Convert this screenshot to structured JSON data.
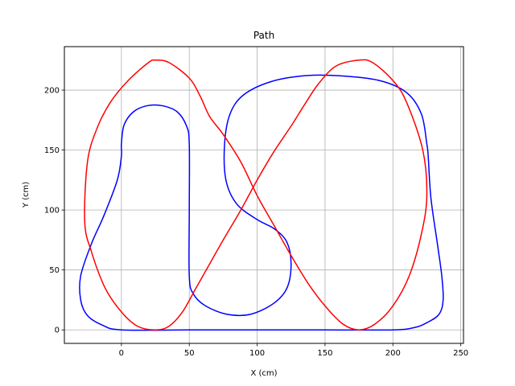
{
  "chart_data": {
    "type": "line",
    "title": "Path",
    "xlabel": "X (cm)",
    "ylabel": "Y (cm)",
    "xlim": [
      -42,
      252
    ],
    "ylim": [
      -11.25,
      236.25
    ],
    "xticks": [
      0,
      50,
      100,
      150,
      200,
      250
    ],
    "yticks": [
      0,
      50,
      100,
      150,
      200
    ],
    "grid": true,
    "series": [
      {
        "color": "#0000ff",
        "points": [
          [
            0,
            0
          ],
          [
            50,
            0
          ],
          [
            100,
            0
          ],
          [
            150,
            0
          ],
          [
            200,
            0
          ],
          [
            216,
            2
          ],
          [
            225,
            6
          ],
          [
            234,
            13
          ],
          [
            237,
            25
          ],
          [
            236,
            45
          ],
          [
            233,
            70
          ],
          [
            228,
            110
          ],
          [
            226,
            145
          ],
          [
            225,
            155
          ],
          [
            221,
            180
          ],
          [
            210,
            198
          ],
          [
            190,
            208
          ],
          [
            160,
            212
          ],
          [
            135,
            212
          ],
          [
            110,
            207
          ],
          [
            90,
            196
          ],
          [
            80,
            180
          ],
          [
            76,
            155
          ],
          [
            77,
            125
          ],
          [
            85,
            105
          ],
          [
            100,
            92
          ],
          [
            113,
            84
          ],
          [
            122,
            73
          ],
          [
            125,
            55
          ],
          [
            122,
            35
          ],
          [
            112,
            22
          ],
          [
            95,
            13
          ],
          [
            78,
            13
          ],
          [
            62,
            20
          ],
          [
            53,
            30
          ],
          [
            50,
            45
          ],
          [
            50,
            100
          ],
          [
            50,
            155
          ],
          [
            48,
            170
          ],
          [
            41,
            182
          ],
          [
            30,
            187
          ],
          [
            19,
            187
          ],
          [
            9,
            182
          ],
          [
            2,
            171
          ],
          [
            0,
            155
          ],
          [
            0,
            145
          ],
          [
            -3,
            125
          ],
          [
            -13,
            95
          ],
          [
            -22,
            72
          ],
          [
            -30,
            45
          ],
          [
            -30,
            25
          ],
          [
            -25,
            12
          ],
          [
            -14,
            4
          ],
          [
            0,
            0
          ]
        ]
      },
      {
        "color": "#ff0000",
        "points": [
          [
            25,
            0
          ],
          [
            12,
            3
          ],
          [
            0,
            15
          ],
          [
            -12,
            35
          ],
          [
            -22,
            65
          ],
          [
            -27,
            90
          ],
          [
            -25,
            140
          ],
          [
            -18,
            168
          ],
          [
            -8,
            190
          ],
          [
            5,
            208
          ],
          [
            20,
            223
          ],
          [
            25,
            225
          ],
          [
            35,
            223
          ],
          [
            50,
            210
          ],
          [
            58,
            195
          ],
          [
            65,
            178
          ],
          [
            75,
            163
          ],
          [
            88,
            140
          ],
          [
            100,
            112
          ],
          [
            112,
            88
          ],
          [
            125,
            62
          ],
          [
            138,
            38
          ],
          [
            150,
            20
          ],
          [
            163,
            5
          ],
          [
            175,
            0
          ],
          [
            187,
            5
          ],
          [
            200,
            20
          ],
          [
            212,
            45
          ],
          [
            221,
            80
          ],
          [
            225,
            112
          ],
          [
            222,
            150
          ],
          [
            210,
            190
          ],
          [
            200,
            208
          ],
          [
            185,
            223
          ],
          [
            175,
            225
          ],
          [
            158,
            220
          ],
          [
            145,
            205
          ],
          [
            135,
            188
          ],
          [
            125,
            170
          ],
          [
            112,
            148
          ],
          [
            100,
            125
          ],
          [
            88,
            100
          ],
          [
            75,
            75
          ],
          [
            65,
            55
          ],
          [
            55,
            35
          ],
          [
            45,
            15
          ],
          [
            35,
            3
          ],
          [
            25,
            0
          ]
        ]
      }
    ]
  }
}
